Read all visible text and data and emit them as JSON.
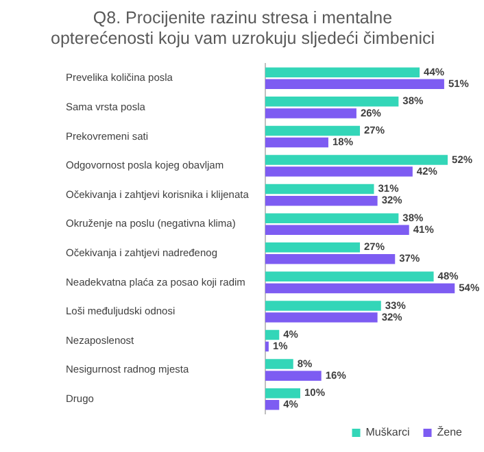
{
  "chart_data": {
    "type": "bar",
    "orientation": "horizontal",
    "title": "Q8. Procijenite razinu stresa i mentalne opterećenosti koju vam uzrokuju sljedeći čimbenici",
    "categories": [
      "Prevelika količina posla",
      "Sama vrsta posla",
      "Prekovremeni sati",
      "Odgovornost posla kojeg obavljam",
      "Očekivanja i zahtjevi korisnika i klijenata",
      "Okruženje na poslu (negativna klima)",
      "Očekivanja i zahtjevi nadređenog",
      "Neadekvatna plaća za posao koji radim",
      "Loši međuljudski odnosi",
      "Nezaposlenost",
      "Nesigurnost radnog mjesta",
      "Drugo"
    ],
    "series": [
      {
        "name": "Muškarci",
        "color": "#33d6b8",
        "values": [
          44,
          38,
          27,
          52,
          31,
          38,
          27,
          48,
          33,
          4,
          8,
          10
        ],
        "value_labels": [
          "44%",
          "38%",
          "27%",
          "52%",
          "31%",
          "38%",
          "27%",
          "48%",
          "33%",
          "4%",
          "8%",
          "10%"
        ]
      },
      {
        "name": "Žene",
        "color": "#7d5cf2",
        "values": [
          51,
          26,
          18,
          42,
          32,
          41,
          37,
          54,
          32,
          1,
          16,
          4
        ],
        "value_labels": [
          "51%",
          "26%",
          "18%",
          "42%",
          "32%",
          "41%",
          "37%",
          "54%",
          "32%",
          "1%",
          "16%",
          "4%"
        ]
      }
    ],
    "legend": "bottom right",
    "grid": false,
    "tick_labels": "y"
  }
}
